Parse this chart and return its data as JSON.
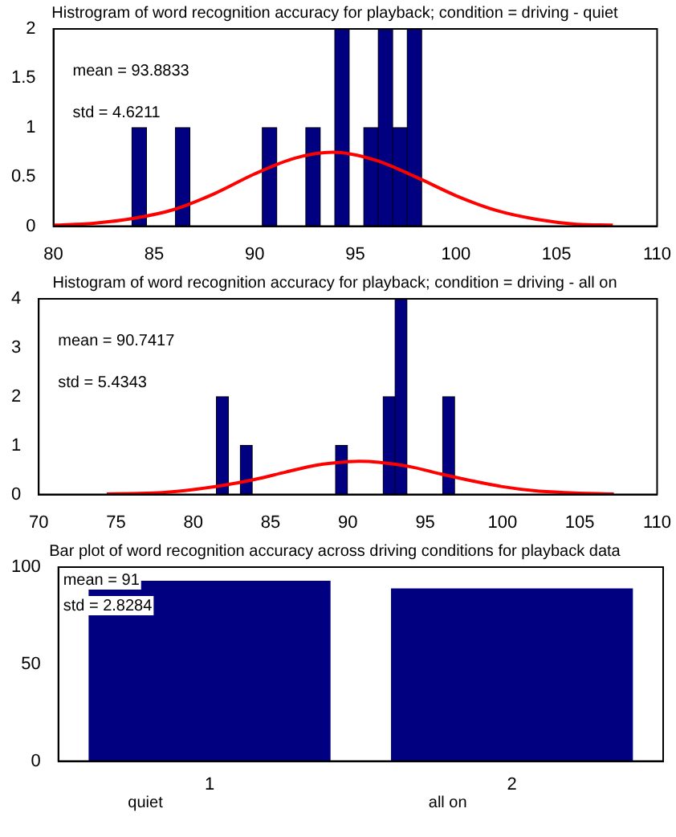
{
  "chart_data": [
    {
      "type": "histogram",
      "title": "Histrogram of word recognition accuracy for playback; condition = driving - quiet",
      "xlim": [
        80,
        110
      ],
      "ylim": [
        0,
        2
      ],
      "xticks": [
        80,
        85,
        90,
        95,
        100,
        105,
        110
      ],
      "yticks": [
        0,
        0.5,
        1,
        1.5,
        2
      ],
      "grid": false,
      "legend": false,
      "annotations": [
        "mean = 93.8833",
        "std = 4.6211"
      ],
      "series": [
        {
          "color": "#000080",
          "bins": [
            83.9,
            84.62,
            85.34,
            86.06,
            86.78,
            87.5,
            88.22,
            88.94,
            89.66,
            90.38,
            91.1,
            91.82,
            92.54,
            93.26,
            93.98,
            94.7,
            95.42,
            96.14,
            96.86,
            97.58,
            98.3
          ],
          "values": [
            1,
            0,
            0,
            1,
            0,
            0,
            0,
            0,
            0,
            1,
            0,
            0,
            1,
            0,
            2,
            0,
            1,
            2,
            1,
            2
          ]
        },
        {
          "type": "line",
          "color": "#ff0000",
          "x": [
            80,
            82,
            84,
            86,
            88,
            90,
            92,
            93.88,
            96,
            98,
            100,
            102,
            104,
            106,
            107.8
          ],
          "values": [
            0.01,
            0.03,
            0.08,
            0.17,
            0.33,
            0.53,
            0.69,
            0.75,
            0.67,
            0.5,
            0.31,
            0.16,
            0.07,
            0.02,
            0.01
          ]
        }
      ]
    },
    {
      "type": "histogram",
      "title": "Histogram of word recognition accuracy for playback; condition = driving - all on",
      "xlim": [
        70,
        110
      ],
      "ylim": [
        0,
        4
      ],
      "xticks": [
        70,
        75,
        80,
        85,
        90,
        95,
        100,
        105,
        110
      ],
      "yticks": [
        0,
        1,
        2,
        3,
        4
      ],
      "grid": false,
      "legend": false,
      "annotations": [
        "mean = 90.7417",
        "std = 5.4343"
      ],
      "series": [
        {
          "color": "#000080",
          "bins": [
            81.5,
            82.27,
            83.04,
            83.81,
            84.58,
            85.35,
            86.12,
            86.89,
            87.66,
            88.43,
            89.2,
            89.97,
            90.74,
            91.51,
            92.28,
            93.05,
            93.82,
            94.59,
            95.36,
            96.13,
            96.9
          ],
          "values": [
            2,
            0,
            1,
            0,
            0,
            0,
            0,
            0,
            0,
            0,
            1,
            0,
            0,
            0,
            2,
            4,
            0,
            0,
            0,
            2
          ]
        },
        {
          "type": "line",
          "color": "#ff0000",
          "x": [
            74.4,
            76,
            78,
            80,
            82,
            84,
            86,
            88,
            90,
            90.74,
            92,
            94,
            96,
            98,
            100,
            102,
            104,
            107.2
          ],
          "values": [
            0.01,
            0.02,
            0.04,
            0.1,
            0.19,
            0.31,
            0.46,
            0.6,
            0.67,
            0.68,
            0.66,
            0.57,
            0.42,
            0.28,
            0.16,
            0.08,
            0.04,
            0.01
          ]
        }
      ]
    },
    {
      "type": "bar",
      "title": "Bar plot of word recognition accuracy across driving conditions for playback data",
      "categories": [
        "1",
        "2"
      ],
      "ylim": [
        0,
        100
      ],
      "yticks": [
        0,
        50,
        100
      ],
      "grid": false,
      "legend": false,
      "annotations": [
        "mean = 91",
        "std = 2.8284",
        "quiet",
        "all on"
      ],
      "series": [
        {
          "color": "#000080",
          "values": [
            93,
            89
          ]
        }
      ]
    }
  ]
}
